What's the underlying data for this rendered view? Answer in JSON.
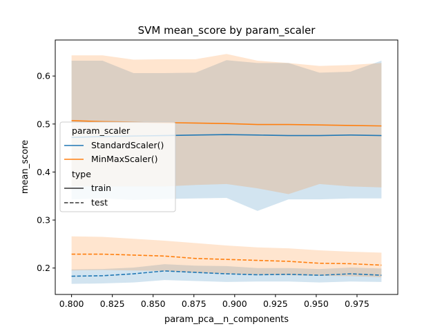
{
  "chart_data": {
    "type": "line",
    "title": "SVM mean_score by param_scaler",
    "xlabel": "param_pca__n_components",
    "ylabel": "mean_score",
    "xlim": [
      0.79,
      1.0
    ],
    "ylim": [
      0.145,
      0.675
    ],
    "xticks": [
      "0.800",
      "0.825",
      "0.850",
      "0.875",
      "0.900",
      "0.925",
      "0.950",
      "0.975"
    ],
    "yticks": [
      "0.2",
      "0.3",
      "0.4",
      "0.5",
      "0.6"
    ],
    "x": [
      0.8,
      0.819,
      0.838,
      0.857,
      0.876,
      0.895,
      0.914,
      0.933,
      0.952,
      0.971,
      0.99
    ],
    "grid": false,
    "legend": {
      "placement": "center-left",
      "hue_title": "param_scaler",
      "style_title": "type",
      "entries": [
        {
          "label": "StandardScaler()",
          "color": "#1f77b4",
          "dash": "solid"
        },
        {
          "label": "MinMaxScaler()",
          "color": "#ff7f0e",
          "dash": "solid"
        },
        {
          "label": "train",
          "color": "#333333",
          "dash": "solid"
        },
        {
          "label": "test",
          "color": "#333333",
          "dash": "dashed"
        }
      ]
    },
    "series": [
      {
        "scaler": "StandardScaler()",
        "type": "train",
        "color": "#1f77b4",
        "dash": "solid",
        "values": [
          0.472,
          0.474,
          0.475,
          0.476,
          0.477,
          0.478,
          0.477,
          0.476,
          0.476,
          0.477,
          0.476
        ],
        "lower": [
          0.343,
          0.345,
          0.342,
          0.344,
          0.345,
          0.346,
          0.319,
          0.343,
          0.343,
          0.345,
          0.345
        ],
        "upper": [
          0.632,
          0.632,
          0.606,
          0.606,
          0.607,
          0.633,
          0.627,
          0.627,
          0.607,
          0.609,
          0.632
        ]
      },
      {
        "scaler": "MinMaxScaler()",
        "type": "train",
        "color": "#ff7f0e",
        "dash": "solid",
        "values": [
          0.507,
          0.505,
          0.504,
          0.503,
          0.502,
          0.501,
          0.499,
          0.499,
          0.498,
          0.497,
          0.496
        ],
        "lower": [
          0.37,
          0.37,
          0.37,
          0.37,
          0.373,
          0.375,
          0.366,
          0.354,
          0.375,
          0.37,
          0.368
        ],
        "upper": [
          0.643,
          0.643,
          0.634,
          0.635,
          0.635,
          0.646,
          0.632,
          0.627,
          0.621,
          0.623,
          0.627
        ]
      },
      {
        "scaler": "StandardScaler()",
        "type": "test",
        "color": "#1f77b4",
        "dash": "dashed",
        "values": [
          0.183,
          0.184,
          0.188,
          0.194,
          0.191,
          0.188,
          0.186,
          0.187,
          0.185,
          0.188,
          0.185
        ],
        "lower": [
          0.167,
          0.168,
          0.17,
          0.175,
          0.173,
          0.171,
          0.172,
          0.172,
          0.17,
          0.172,
          0.171
        ],
        "upper": [
          0.197,
          0.198,
          0.201,
          0.208,
          0.205,
          0.204,
          0.2,
          0.2,
          0.198,
          0.201,
          0.199
        ]
      },
      {
        "scaler": "MinMaxScaler()",
        "type": "test",
        "color": "#ff7f0e",
        "dash": "dashed",
        "values": [
          0.229,
          0.229,
          0.227,
          0.225,
          0.22,
          0.218,
          0.216,
          0.214,
          0.21,
          0.209,
          0.206
        ],
        "lower": [
          0.195,
          0.196,
          0.195,
          0.194,
          0.19,
          0.188,
          0.186,
          0.185,
          0.184,
          0.183,
          0.181
        ],
        "upper": [
          0.266,
          0.265,
          0.261,
          0.257,
          0.252,
          0.247,
          0.243,
          0.241,
          0.237,
          0.234,
          0.232
        ]
      }
    ]
  }
}
